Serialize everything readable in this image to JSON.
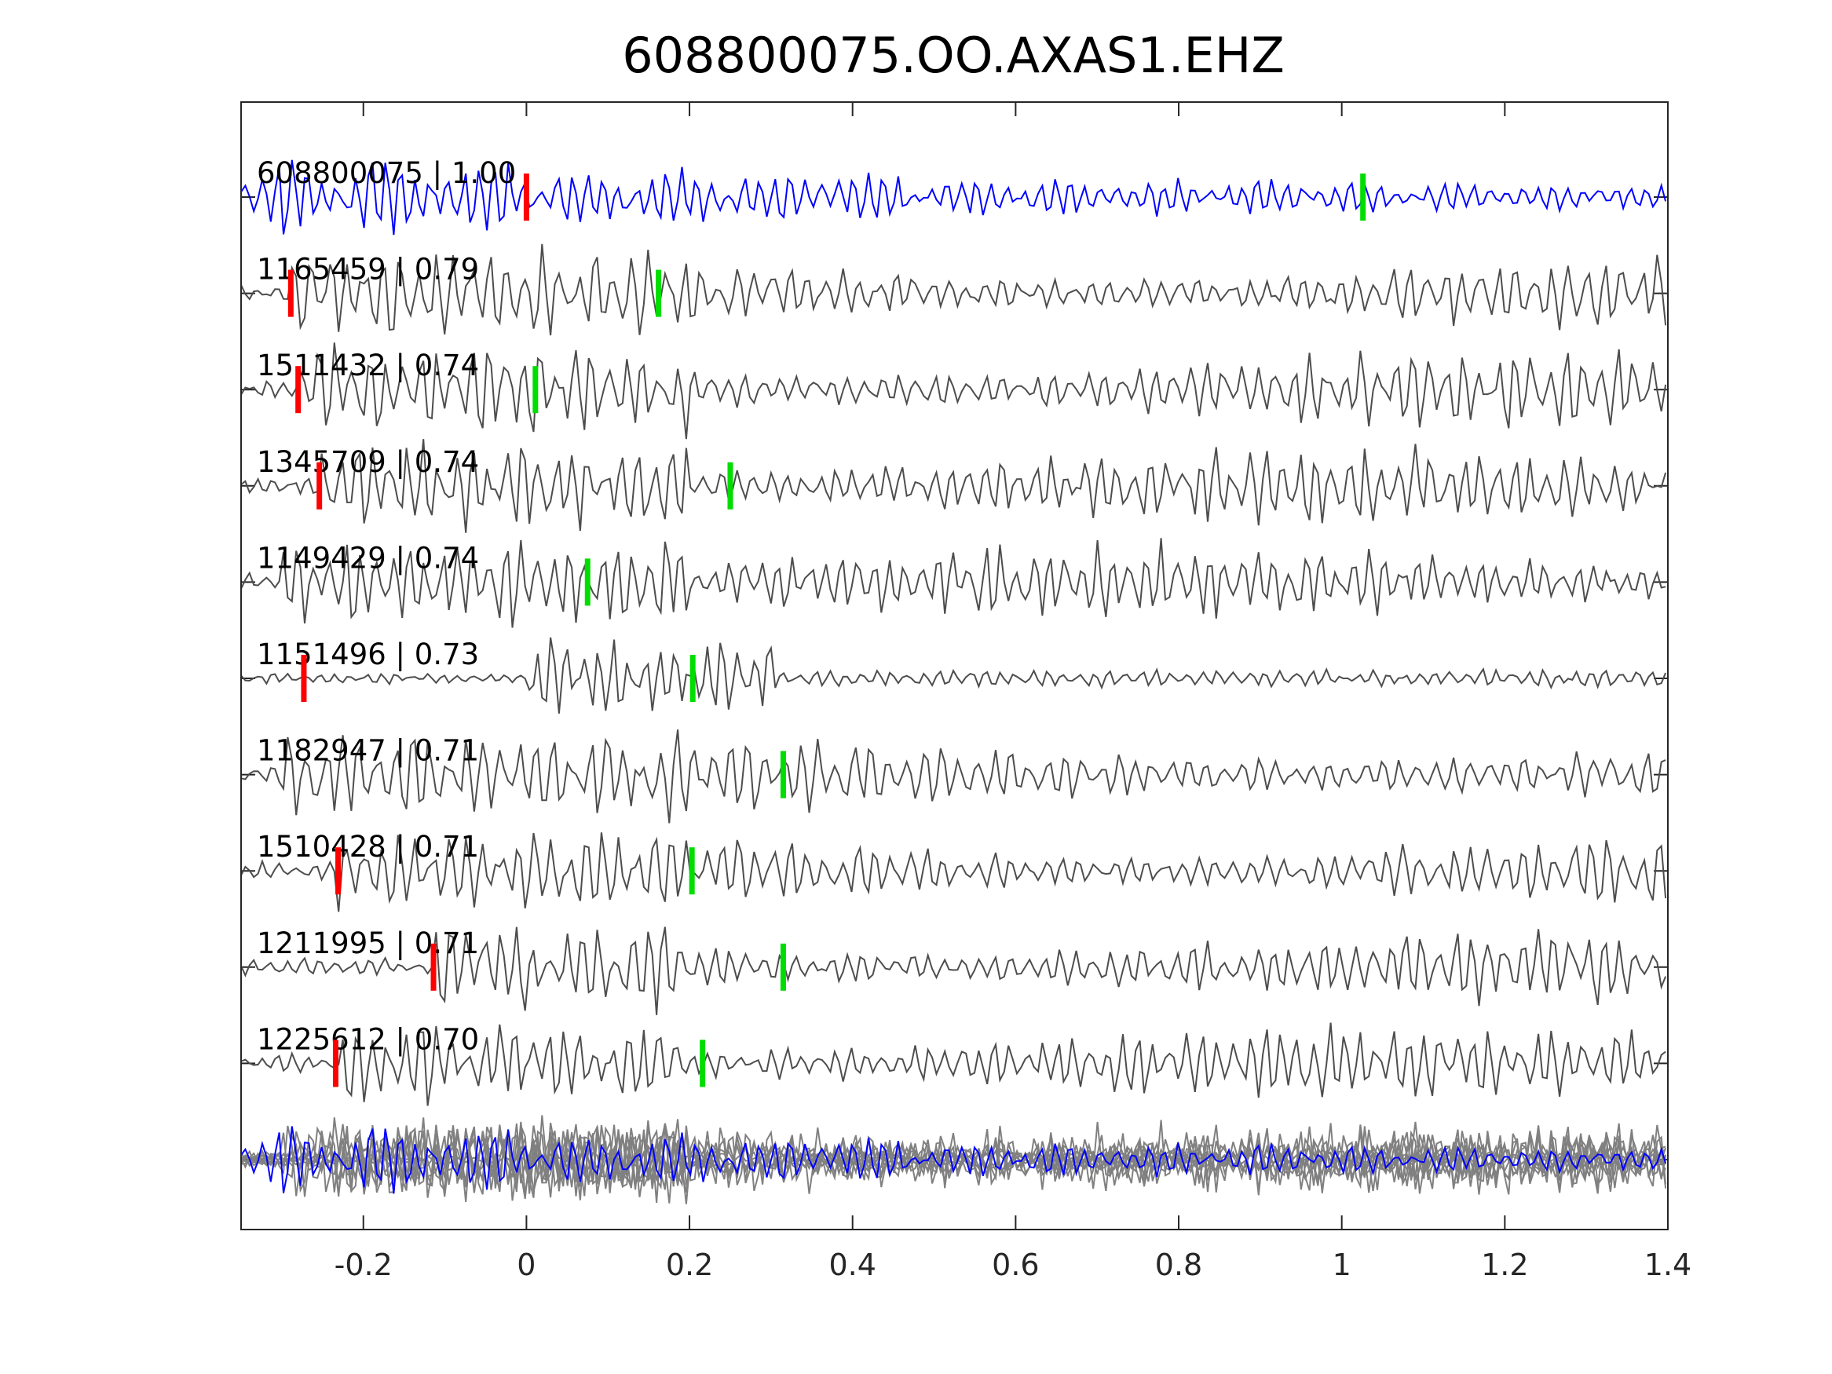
{
  "chart_data": {
    "type": "line",
    "title": "608800075.OO.AXAS1.EHZ",
    "xlabel": "",
    "ylabel": "",
    "xlim": [
      -0.35,
      1.4
    ],
    "xticks": [
      -0.2,
      0,
      0.2,
      0.4,
      0.6,
      0.8,
      1,
      1.2,
      1.4
    ],
    "xtick_labels": [
      "-0.2",
      "0",
      "0.2",
      "0.4",
      "0.6",
      "0.8",
      "1",
      "1.2",
      "1.4"
    ],
    "grid": false,
    "legend": "none",
    "colors": {
      "template": "#0000ff",
      "match": "#4d4d4d",
      "stack": "#808080",
      "p_pick": "#ff0000",
      "s_pick": "#00dd00",
      "axis": "#262626"
    },
    "series": [
      {
        "name": "608800075",
        "label": "608800075 | 1.00",
        "cc": 1.0,
        "p_pick": 0.0,
        "s_pick": 1.026,
        "color": "template"
      },
      {
        "name": "1165459",
        "label": "1165459 | 0.79",
        "cc": 0.79,
        "p_pick": -0.289,
        "s_pick": 0.162,
        "color": "match"
      },
      {
        "name": "1511432",
        "label": "1511432 | 0.74",
        "cc": 0.74,
        "p_pick": -0.28,
        "s_pick": 0.011,
        "color": "match"
      },
      {
        "name": "1345709",
        "label": "1345709 | 0.74",
        "cc": 0.74,
        "p_pick": -0.254,
        "s_pick": 0.25,
        "color": "match"
      },
      {
        "name": "1149429",
        "label": "1149429 | 0.74",
        "cc": 0.74,
        "p_pick": null,
        "s_pick": 0.075,
        "color": "match"
      },
      {
        "name": "1151496",
        "label": "1151496 | 0.73",
        "cc": 0.73,
        "p_pick": -0.273,
        "s_pick": 0.204,
        "color": "match"
      },
      {
        "name": "1182947",
        "label": "1182947 | 0.71",
        "cc": 0.71,
        "p_pick": null,
        "s_pick": 0.315,
        "color": "match"
      },
      {
        "name": "1510428",
        "label": "1510428 | 0.71",
        "cc": 0.71,
        "p_pick": -0.231,
        "s_pick": 0.203,
        "color": "match"
      },
      {
        "name": "1211995",
        "label": "1211995 | 0.71",
        "cc": 0.71,
        "p_pick": -0.114,
        "s_pick": 0.315,
        "color": "match"
      },
      {
        "name": "1225612",
        "label": "1225612 | 0.70",
        "cc": 0.7,
        "p_pick": -0.234,
        "s_pick": 0.216,
        "color": "match"
      }
    ]
  }
}
